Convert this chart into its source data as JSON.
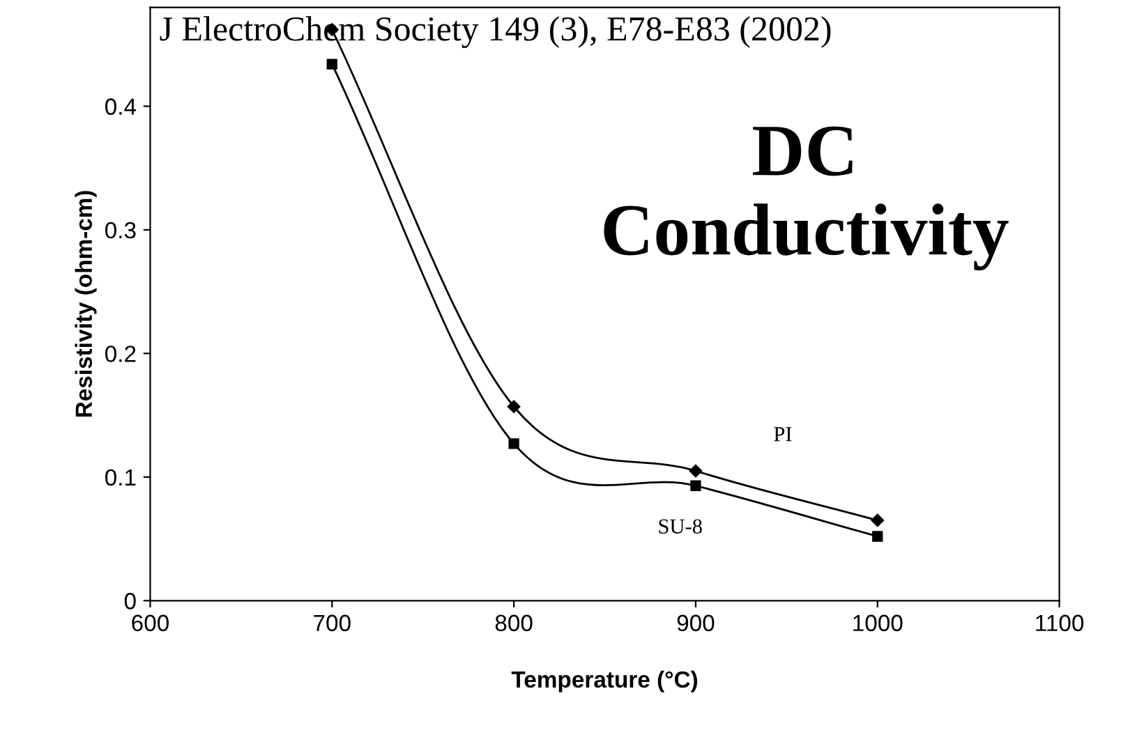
{
  "chart_data": {
    "type": "line",
    "xlabel": "Temperature (°C)",
    "ylabel": "Resistivity (ohm-cm)",
    "x": [
      700,
      800,
      900,
      1000
    ],
    "series": [
      {
        "name": "PI",
        "color": "#000000",
        "marker": "diamond",
        "values": [
          0.462,
          0.157,
          0.105,
          0.065
        ]
      },
      {
        "name": "SU-8",
        "color": "#000000",
        "marker": "square",
        "values": [
          0.434,
          0.127,
          0.093,
          0.052
        ]
      }
    ],
    "xlim": [
      600,
      1100
    ],
    "xticks": [
      600,
      700,
      800,
      900,
      1000,
      1100
    ],
    "ylim": [
      0,
      0.48
    ],
    "yticks": [
      0,
      0.1,
      0.2,
      0.3,
      0.4
    ],
    "annotations": [
      "J ElectroChem Society 149 (3), E78-E83 (2002)",
      "DC Conductivity"
    ],
    "grid": false,
    "legend": false,
    "line_style": "solid"
  }
}
